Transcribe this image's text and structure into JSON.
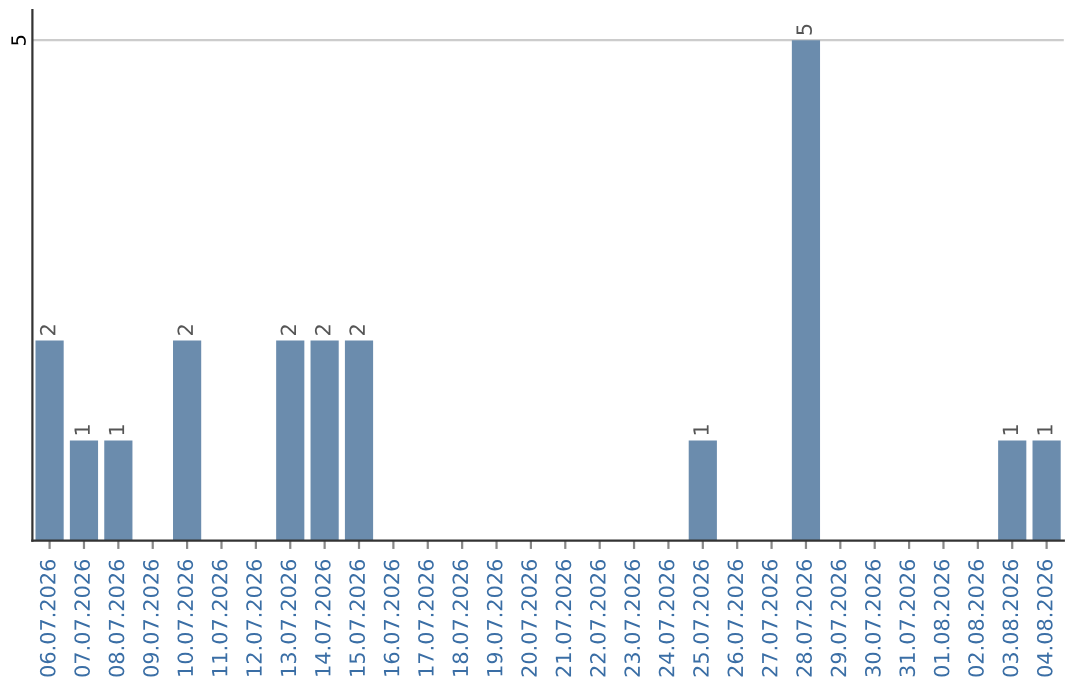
{
  "chart_data": {
    "type": "bar",
    "categories": [
      "06.07.2026",
      "07.07.2026",
      "08.07.2026",
      "09.07.2026",
      "10.07.2026",
      "11.07.2026",
      "12.07.2026",
      "13.07.2026",
      "14.07.2026",
      "15.07.2026",
      "16.07.2026",
      "17.07.2026",
      "18.07.2026",
      "19.07.2026",
      "20.07.2026",
      "21.07.2026",
      "22.07.2026",
      "23.07.2026",
      "24.07.2026",
      "25.07.2026",
      "26.07.2026",
      "27.07.2026",
      "28.07.2026",
      "29.07.2026",
      "30.07.2026",
      "31.07.2026",
      "01.08.2026",
      "02.08.2026",
      "03.08.2026",
      "04.08.2026"
    ],
    "values": [
      2,
      1,
      1,
      0,
      2,
      0,
      0,
      2,
      2,
      2,
      0,
      0,
      0,
      0,
      0,
      0,
      0,
      0,
      0,
      1,
      0,
      0,
      5,
      0,
      0,
      0,
      0,
      0,
      1,
      1
    ],
    "value_labels": [
      "2",
      "1",
      "1",
      null,
      "2",
      null,
      null,
      "2",
      "2",
      "2",
      null,
      null,
      null,
      null,
      null,
      null,
      null,
      null,
      null,
      "1",
      null,
      null,
      "5",
      null,
      null,
      null,
      null,
      null,
      "1",
      "1"
    ],
    "color": "#6b8cad",
    "ylim": [
      0,
      5.3
    ],
    "yticks": [
      5
    ],
    "grid": "y"
  }
}
